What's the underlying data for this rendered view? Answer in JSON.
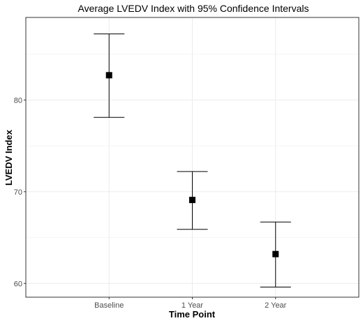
{
  "chart_data": {
    "type": "scatter",
    "title": "Average LVEDV Index with 95% Confidence Intervals",
    "xlabel": "Time Point",
    "ylabel": "LVEDV Index",
    "categories": [
      "Baseline",
      "1 Year",
      "2 Year"
    ],
    "series": [
      {
        "points": [
          {
            "x": "Baseline",
            "mean": 82.7,
            "lower": 78.1,
            "upper": 87.2
          },
          {
            "x": "1 Year",
            "mean": 69.1,
            "lower": 65.9,
            "upper": 72.2
          },
          {
            "x": "2 Year",
            "mean": 63.2,
            "lower": 59.6,
            "upper": 66.7
          }
        ]
      }
    ],
    "ylim": [
      58.5,
      89.0
    ],
    "yticks": [
      60,
      70,
      80
    ],
    "grid": true,
    "legend": "none",
    "colors": {
      "point": "#000000",
      "errorbar": "#000000",
      "grid": "#ebebeb",
      "panel_border": "#333333",
      "background": "#ffffff"
    }
  }
}
